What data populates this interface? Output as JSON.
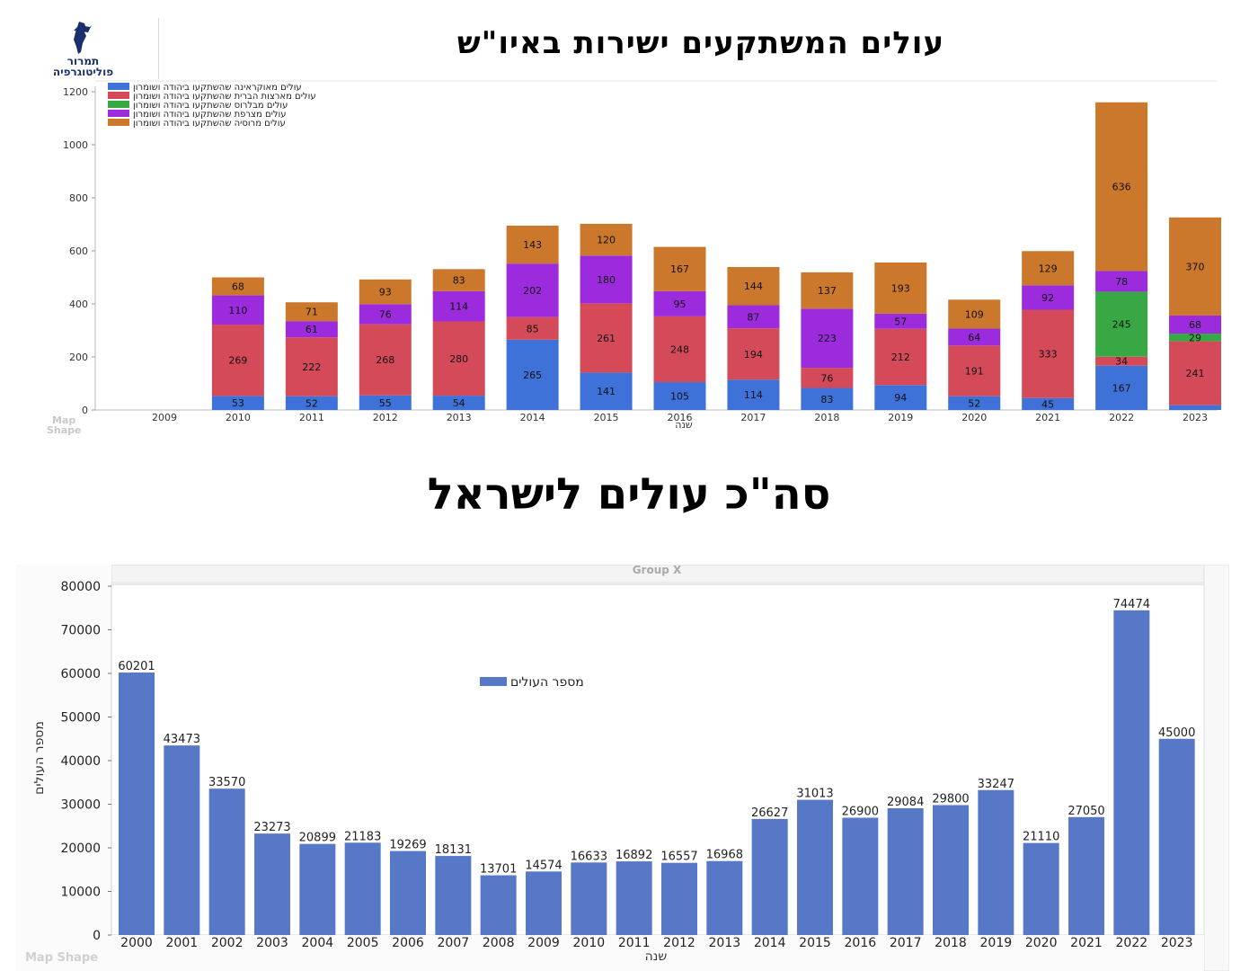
{
  "header": {
    "logo_text_line1": "תמרור",
    "logo_text_line2": "פוליטוגרפיה",
    "title": "עולים המשתקעים ישירות באיו\"ש"
  },
  "section2": {
    "title": "סה\"כ עולים לישראל"
  },
  "colors": {
    "ukraine": "#3f72d9",
    "fsu": "#d44a59",
    "belarus": "#38a845",
    "france": "#9b2bdc",
    "russia": "#cc782c",
    "total_bar": "#5778c6"
  },
  "chart_data": [
    {
      "type": "bar",
      "stacked": true,
      "title": "",
      "xlabel": "שנה",
      "ylabel": "",
      "ylim": [
        0,
        1200
      ],
      "yticks": [
        0,
        200,
        400,
        600,
        800,
        1000,
        1200
      ],
      "grid": false,
      "legend_position": "top-left",
      "watermark": [
        "Map",
        "Shape"
      ],
      "categories": [
        "2009",
        "2010",
        "2011",
        "2012",
        "2013",
        "2014",
        "2015",
        "2016",
        "2017",
        "2018",
        "2019",
        "2020",
        "2021",
        "2022",
        "2023"
      ],
      "series": [
        {
          "name": "עולים מאוקראינה שהשתקעו ביהודה ושומרון",
          "color_key": "ukraine",
          "values": [
            0,
            53,
            52,
            55,
            54,
            265,
            141,
            105,
            114,
            83,
            94,
            52,
            45,
            167,
            18
          ],
          "labels": [
            null,
            "53",
            "52",
            "55",
            "54",
            "265",
            "141",
            "105",
            "114",
            "83",
            "94",
            "52",
            "45",
            "167",
            null
          ]
        },
        {
          "name": "עולים מארצות הברית שהשתקעו ביהודה ושומרון",
          "color_key": "fsu",
          "values": [
            0,
            269,
            222,
            268,
            280,
            85,
            261,
            248,
            194,
            76,
            212,
            191,
            333,
            34,
            241
          ],
          "labels": [
            null,
            "269",
            "222",
            "268",
            "280",
            "85",
            "261",
            "248",
            "194",
            "76",
            "212",
            "191",
            "333",
            "34",
            "241"
          ]
        },
        {
          "name": "עולים מבלרוס שהשתקעו ביהודה ושומרון",
          "color_key": "belarus",
          "values": [
            0,
            0,
            0,
            0,
            0,
            0,
            0,
            0,
            0,
            0,
            0,
            0,
            0,
            245,
            29
          ],
          "labels": [
            null,
            null,
            null,
            null,
            null,
            null,
            null,
            null,
            null,
            null,
            null,
            null,
            null,
            "245",
            "29"
          ]
        },
        {
          "name": "עולים מצרפת שהשתקעו ביהודה ושומרון",
          "color_key": "france",
          "values": [
            0,
            110,
            61,
            76,
            114,
            202,
            180,
            95,
            87,
            223,
            57,
            64,
            92,
            78,
            68
          ],
          "labels": [
            null,
            "110",
            "61",
            "76",
            "114",
            "202",
            "180",
            "95",
            "87",
            "223",
            "57",
            "64",
            "92",
            "78",
            "68"
          ]
        },
        {
          "name": "עולים מרוסיה שהשתקעו ביהודה ושומרון",
          "color_key": "russia",
          "values": [
            0,
            68,
            71,
            93,
            83,
            143,
            120,
            167,
            144,
            137,
            193,
            109,
            129,
            636,
            370
          ],
          "labels": [
            null,
            "68",
            "71",
            "93",
            "83",
            "143",
            "120",
            "167",
            "144",
            "137",
            "193",
            "109",
            "129",
            "636",
            "370"
          ]
        }
      ]
    },
    {
      "type": "bar",
      "title": "",
      "group_label": "Group X",
      "xlabel": "שנה",
      "ylabel": "מספר העולים",
      "ylim": [
        0,
        80000
      ],
      "yticks": [
        0,
        10000,
        20000,
        30000,
        40000,
        50000,
        60000,
        70000,
        80000
      ],
      "grid": false,
      "legend_position": "top-center",
      "watermark": "Map Shape",
      "categories": [
        "2000",
        "2001",
        "2002",
        "2003",
        "2004",
        "2005",
        "2006",
        "2007",
        "2008",
        "2009",
        "2010",
        "2011",
        "2012",
        "2013",
        "2014",
        "2015",
        "2016",
        "2017",
        "2018",
        "2019",
        "2020",
        "2021",
        "2022",
        "2023"
      ],
      "series": [
        {
          "name": "מספר העולים",
          "color_key": "total_bar",
          "values": [
            60201,
            43473,
            33570,
            23273,
            20899,
            21183,
            19269,
            18131,
            13701,
            14574,
            16633,
            16892,
            16557,
            16968,
            26627,
            31013,
            26900,
            29084,
            29800,
            33247,
            21110,
            27050,
            74474,
            45000
          ]
        }
      ]
    }
  ]
}
